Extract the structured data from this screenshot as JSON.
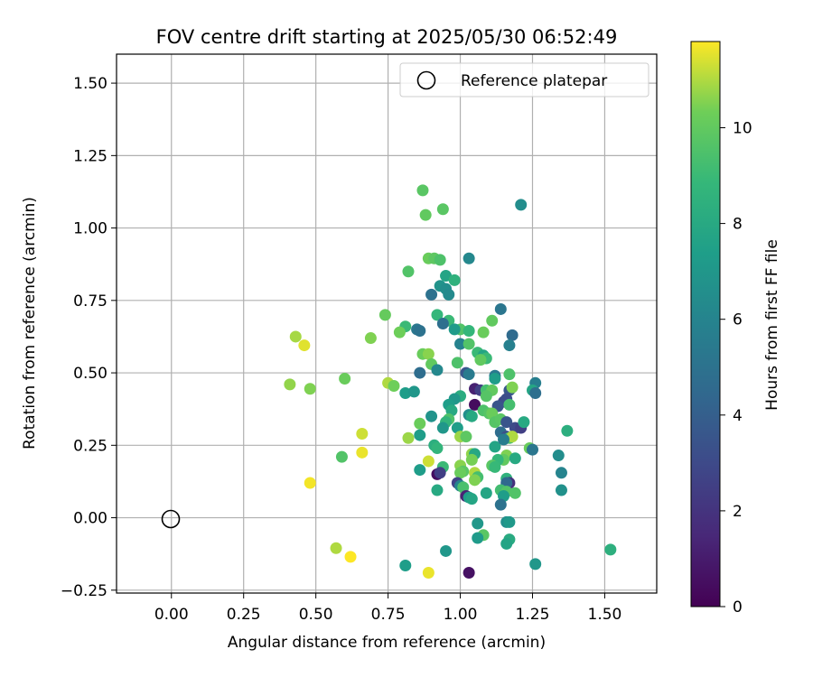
{
  "chart_data": {
    "type": "scatter",
    "title": "FOV centre drift starting at 2025/05/30 06:52:49",
    "xlabel": "Angular distance from reference (arcmin)",
    "ylabel": "Rotation from reference (arcmin)",
    "xlim": [
      -0.19,
      1.68
    ],
    "ylim": [
      -0.26,
      1.6
    ],
    "xticks": [
      "0.00",
      "0.25",
      "0.50",
      "0.75",
      "1.00",
      "1.25",
      "1.50"
    ],
    "xtick_values": [
      0,
      0.25,
      0.5,
      0.75,
      1.0,
      1.25,
      1.5
    ],
    "yticks": [
      "−0.25",
      "0.00",
      "0.25",
      "0.50",
      "0.75",
      "1.00",
      "1.25",
      "1.50"
    ],
    "ytick_values": [
      -0.25,
      0,
      0.25,
      0.5,
      0.75,
      1.0,
      1.25,
      1.5
    ],
    "grid": true,
    "legend": {
      "position": "top-right",
      "label": "Reference platepar"
    },
    "reference_point": {
      "x": 0.0,
      "y": 0.0
    },
    "colorbar": {
      "label": "Hours from first FF file",
      "range": [
        0,
        11.8
      ],
      "ticks": [
        "0",
        "2",
        "4",
        "6",
        "8",
        "10"
      ],
      "tick_values": [
        0,
        2,
        4,
        6,
        8,
        10
      ],
      "colormap": "viridis"
    },
    "series": [
      {
        "points": [
          [
            0.87,
            1.13,
            9.8
          ],
          [
            0.88,
            1.045,
            10.0
          ],
          [
            0.94,
            1.065,
            9.8
          ],
          [
            1.21,
            1.08,
            6.5
          ],
          [
            0.89,
            0.895,
            10.2
          ],
          [
            0.91,
            0.895,
            9.9
          ],
          [
            0.93,
            0.89,
            9.5
          ],
          [
            1.03,
            0.895,
            6.2
          ],
          [
            0.82,
            0.85,
            9.6
          ],
          [
            0.95,
            0.835,
            7.7
          ],
          [
            0.98,
            0.82,
            8.5
          ],
          [
            0.93,
            0.8,
            6.8
          ],
          [
            0.95,
            0.79,
            6.5
          ],
          [
            0.9,
            0.77,
            5.0
          ],
          [
            0.96,
            0.77,
            6.3
          ],
          [
            1.14,
            0.72,
            5.2
          ],
          [
            0.74,
            0.7,
            10.1
          ],
          [
            0.92,
            0.7,
            8.8
          ],
          [
            0.96,
            0.68,
            9.0
          ],
          [
            0.94,
            0.67,
            4.8
          ],
          [
            1.11,
            0.68,
            10.0
          ],
          [
            1.0,
            0.65,
            9.6
          ],
          [
            1.03,
            0.645,
            8.8
          ],
          [
            0.81,
            0.66,
            9.0
          ],
          [
            0.79,
            0.64,
            10.3
          ],
          [
            0.85,
            0.65,
            5.3
          ],
          [
            0.86,
            0.645,
            5.0
          ],
          [
            1.18,
            0.63,
            4.6
          ],
          [
            0.98,
            0.65,
            7.2
          ],
          [
            1.08,
            0.64,
            10.2
          ],
          [
            0.43,
            0.625,
            10.9
          ],
          [
            0.69,
            0.62,
            10.5
          ],
          [
            1.0,
            0.6,
            5.9
          ],
          [
            1.03,
            0.6,
            9.6
          ],
          [
            1.17,
            0.595,
            5.8
          ],
          [
            0.46,
            0.595,
            11.5
          ],
          [
            0.87,
            0.565,
            10.2
          ],
          [
            0.89,
            0.565,
            10.6
          ],
          [
            1.06,
            0.57,
            9.0
          ],
          [
            1.08,
            0.56,
            7.8
          ],
          [
            1.09,
            0.55,
            9.0
          ],
          [
            0.99,
            0.535,
            9.5
          ],
          [
            1.07,
            0.545,
            10.0
          ],
          [
            0.9,
            0.53,
            10.0
          ],
          [
            0.92,
            0.51,
            6.2
          ],
          [
            0.86,
            0.5,
            4.7
          ],
          [
            1.02,
            0.5,
            3.6
          ],
          [
            1.03,
            0.495,
            5.5
          ],
          [
            1.12,
            0.49,
            5.4
          ],
          [
            1.12,
            0.48,
            7.3
          ],
          [
            1.17,
            0.495,
            9.5
          ],
          [
            0.6,
            0.48,
            10.2
          ],
          [
            0.75,
            0.465,
            11.0
          ],
          [
            0.77,
            0.455,
            10.3
          ],
          [
            0.41,
            0.46,
            10.7
          ],
          [
            0.48,
            0.445,
            10.5
          ],
          [
            1.26,
            0.465,
            5.7
          ],
          [
            1.17,
            0.44,
            3.6
          ],
          [
            1.18,
            0.45,
            10.5
          ],
          [
            1.25,
            0.44,
            7.8
          ],
          [
            1.26,
            0.43,
            4.8
          ],
          [
            1.05,
            0.445,
            1.2
          ],
          [
            1.07,
            0.44,
            2.5
          ],
          [
            1.09,
            0.44,
            9.3
          ],
          [
            1.11,
            0.44,
            10.0
          ],
          [
            1.09,
            0.42,
            9.7
          ],
          [
            0.81,
            0.43,
            7.3
          ],
          [
            0.84,
            0.435,
            7.0
          ],
          [
            1.0,
            0.42,
            8.2
          ],
          [
            0.98,
            0.41,
            7.0
          ],
          [
            1.15,
            0.4,
            2.8
          ],
          [
            1.16,
            0.41,
            3.2
          ],
          [
            1.13,
            0.385,
            3.5
          ],
          [
            1.17,
            0.39,
            9.3
          ],
          [
            0.96,
            0.39,
            7.4
          ],
          [
            1.05,
            0.39,
            0.4
          ],
          [
            0.97,
            0.37,
            8.0
          ],
          [
            1.08,
            0.37,
            9.5
          ],
          [
            1.1,
            0.36,
            9.7
          ],
          [
            1.11,
            0.36,
            10.2
          ],
          [
            1.03,
            0.355,
            6.6
          ],
          [
            1.04,
            0.35,
            8.0
          ],
          [
            0.9,
            0.35,
            6.8
          ],
          [
            0.96,
            0.34,
            9.5
          ],
          [
            1.12,
            0.33,
            9.7
          ],
          [
            1.14,
            0.34,
            9.8
          ],
          [
            1.16,
            0.33,
            3.5
          ],
          [
            1.19,
            0.31,
            3.0
          ],
          [
            1.21,
            0.31,
            2.5
          ],
          [
            1.22,
            0.33,
            8.0
          ],
          [
            0.86,
            0.325,
            10.2
          ],
          [
            0.95,
            0.33,
            8.7
          ],
          [
            0.94,
            0.31,
            7.0
          ],
          [
            0.99,
            0.31,
            7.4
          ],
          [
            1.37,
            0.3,
            8.3
          ],
          [
            1.14,
            0.295,
            4.7
          ],
          [
            1.16,
            0.28,
            3.3
          ],
          [
            1.17,
            0.275,
            9.5
          ],
          [
            1.18,
            0.28,
            11.0
          ],
          [
            1.0,
            0.28,
            10.8
          ],
          [
            1.02,
            0.28,
            9.9
          ],
          [
            0.82,
            0.275,
            10.8
          ],
          [
            0.86,
            0.285,
            7.3
          ],
          [
            0.66,
            0.29,
            11.3
          ],
          [
            1.12,
            0.245,
            7.7
          ],
          [
            1.15,
            0.27,
            5.6
          ],
          [
            1.24,
            0.24,
            10.2
          ],
          [
            1.25,
            0.235,
            5.2
          ],
          [
            0.91,
            0.25,
            8.3
          ],
          [
            0.92,
            0.24,
            8.7
          ],
          [
            1.04,
            0.22,
            10.7
          ],
          [
            1.05,
            0.22,
            7.9
          ],
          [
            0.66,
            0.225,
            11.6
          ],
          [
            0.59,
            0.21,
            9.6
          ],
          [
            1.34,
            0.215,
            6.5
          ],
          [
            1.16,
            0.215,
            10.5
          ],
          [
            1.15,
            0.2,
            10.0
          ],
          [
            1.19,
            0.205,
            8.0
          ],
          [
            1.04,
            0.2,
            10.4
          ],
          [
            1.13,
            0.2,
            8.8
          ],
          [
            1.11,
            0.18,
            9.8
          ],
          [
            1.12,
            0.175,
            8.9
          ],
          [
            0.89,
            0.195,
            11.3
          ],
          [
            0.94,
            0.175,
            9.0
          ],
          [
            1.0,
            0.18,
            10.6
          ],
          [
            1.01,
            0.16,
            9.8
          ],
          [
            1.0,
            0.155,
            10.2
          ],
          [
            1.05,
            0.155,
            11.0
          ],
          [
            1.06,
            0.14,
            9.3
          ],
          [
            1.05,
            0.13,
            10.5
          ],
          [
            0.92,
            0.15,
            0.5
          ],
          [
            0.93,
            0.155,
            2.5
          ],
          [
            0.86,
            0.165,
            7.3
          ],
          [
            1.35,
            0.155,
            6.0
          ],
          [
            1.16,
            0.135,
            8.5
          ],
          [
            1.17,
            0.12,
            1.8
          ],
          [
            1.16,
            0.12,
            4.5
          ],
          [
            0.99,
            0.12,
            2.7
          ],
          [
            1.0,
            0.11,
            6.0
          ],
          [
            1.01,
            0.105,
            9.4
          ],
          [
            0.48,
            0.12,
            11.7
          ],
          [
            0.92,
            0.095,
            8.0
          ],
          [
            1.14,
            0.095,
            9.2
          ],
          [
            1.16,
            0.09,
            9.6
          ],
          [
            1.15,
            0.075,
            7.3
          ],
          [
            1.19,
            0.085,
            9.6
          ],
          [
            1.35,
            0.095,
            6.7
          ],
          [
            1.09,
            0.085,
            7.8
          ],
          [
            1.02,
            0.075,
            1.3
          ],
          [
            1.03,
            0.07,
            7.4
          ],
          [
            1.04,
            0.065,
            7.8
          ],
          [
            1.14,
            0.045,
            5.0
          ],
          [
            1.06,
            -0.02,
            7.0
          ],
          [
            1.16,
            -0.015,
            6.6
          ],
          [
            1.17,
            -0.015,
            7.1
          ],
          [
            1.08,
            -0.06,
            9.8
          ],
          [
            1.06,
            -0.07,
            7.2
          ],
          [
            1.17,
            -0.075,
            8.1
          ],
          [
            1.16,
            -0.09,
            7.7
          ],
          [
            0.57,
            -0.105,
            11.0
          ],
          [
            0.95,
            -0.115,
            7.0
          ],
          [
            1.52,
            -0.11,
            8.4
          ],
          [
            0.62,
            -0.135,
            11.8
          ],
          [
            0.81,
            -0.165,
            7.4
          ],
          [
            1.26,
            -0.16,
            7.0
          ],
          [
            0.89,
            -0.19,
            11.6
          ],
          [
            1.03,
            -0.19,
            0.6
          ]
        ]
      }
    ]
  }
}
